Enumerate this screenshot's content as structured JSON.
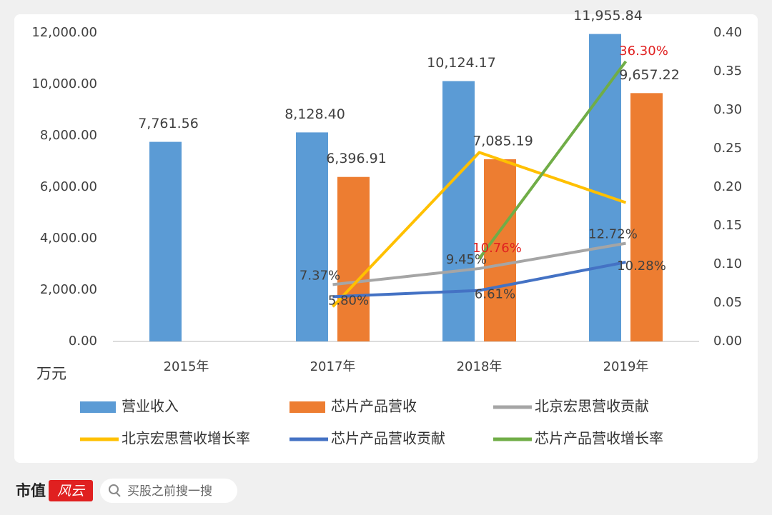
{
  "chart_data": {
    "type": "bar",
    "y_label": "万元",
    "categories": [
      "2015年",
      "2017年",
      "2018年",
      "2019年"
    ],
    "ylim": [
      0,
      12000
    ],
    "yticks": [
      {
        "value": 0,
        "label": "0.00"
      },
      {
        "value": 2000,
        "label": "2,000.00"
      },
      {
        "value": 4000,
        "label": "4,000.00"
      },
      {
        "value": 6000,
        "label": "6,000.00"
      },
      {
        "value": 8000,
        "label": "8,000.00"
      },
      {
        "value": 10000,
        "label": "10,000.00"
      },
      {
        "value": 12000,
        "label": "12,000.00"
      }
    ],
    "y2lim": [
      0,
      0.4
    ],
    "y2ticks": [
      {
        "value": 0,
        "label": "0.00"
      },
      {
        "value": 0.05,
        "label": "0.05"
      },
      {
        "value": 0.1,
        "label": "0.10"
      },
      {
        "value": 0.15,
        "label": "0.15"
      },
      {
        "value": 0.2,
        "label": "0.20"
      },
      {
        "value": 0.25,
        "label": "0.25"
      },
      {
        "value": 0.3,
        "label": "0.30"
      },
      {
        "value": 0.35,
        "label": "0.35"
      },
      {
        "value": 0.4,
        "label": "0.40"
      }
    ],
    "grid": false,
    "series": [
      {
        "name": "营业收入",
        "type": "bar",
        "color": "#5b9bd5",
        "label_color": "#404040",
        "values": [
          7761.56,
          8128.4,
          10124.17,
          11955.84
        ],
        "value_labels": [
          "7,761.56",
          "8,128.40",
          "10,124.17",
          "11,955.84"
        ]
      },
      {
        "name": "芯片产品营收",
        "type": "bar",
        "color": "#ed7d31",
        "label_color": "#404040",
        "values": [
          null,
          6396.91,
          7085.19,
          9657.22
        ],
        "value_labels": [
          null,
          "6,396.91",
          "7,085.19",
          "9,657.22"
        ]
      },
      {
        "name": "北京宏思营收贡献",
        "type": "line",
        "axis": "y2",
        "color": "#a5a5a5",
        "label_color": "#404040",
        "values": [
          null,
          0.0737,
          0.0945,
          0.1272
        ],
        "value_labels": [
          null,
          "7.37%",
          "9.45%",
          "12.72%"
        ]
      },
      {
        "name": "北京宏思营收增长率",
        "type": "line",
        "axis": "y2",
        "color": "#ffc000",
        "values": [
          null,
          0.045,
          0.245,
          0.18
        ]
      },
      {
        "name": "芯片产品营收贡献",
        "type": "line",
        "axis": "y2",
        "color": "#4472c4",
        "label_color": "#404040",
        "values": [
          null,
          0.058,
          0.0661,
          0.1028
        ],
        "value_labels": [
          null,
          "5.80%",
          "6.61%",
          "10.28%"
        ]
      },
      {
        "name": "芯片产品营收增长率",
        "type": "line",
        "axis": "y2",
        "color": "#70ad47",
        "label_color": "#e02020",
        "values": [
          null,
          null,
          0.1076,
          0.363
        ],
        "value_labels": [
          null,
          null,
          "10.76%",
          "36.30%"
        ]
      }
    ]
  },
  "footer": {
    "brand": "市值",
    "logo": "风云",
    "search": "买股之前搜一搜"
  }
}
